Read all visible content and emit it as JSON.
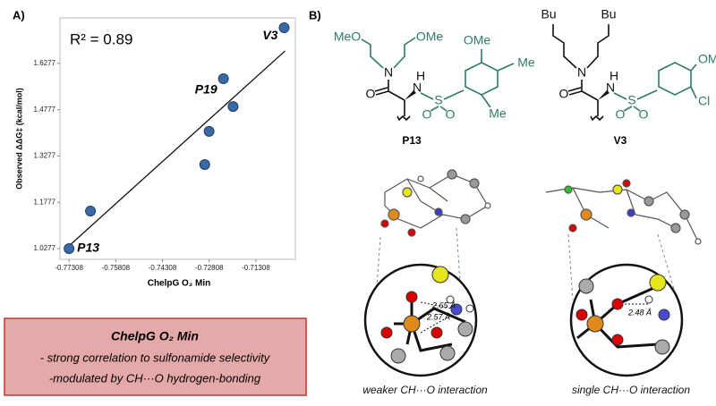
{
  "chart_data": {
    "type": "scatter",
    "panel_label": "A)",
    "annotation": "R² = 0.89",
    "x_label": "ChelpG O₂ Min",
    "y_label": "Observed ΔΔG‡ (kcal/mol)",
    "x": [
      -0.77308,
      -0.7662,
      -0.7295,
      -0.7281,
      -0.7235,
      -0.7204,
      -0.704
    ],
    "y": [
      1.0277,
      1.1495,
      1.3,
      1.4075,
      1.578,
      1.488,
      1.743
    ],
    "point_labels": [
      "P13",
      null,
      null,
      null,
      "P19",
      null,
      "V3"
    ],
    "color": "#3a6aa5",
    "trendline": {
      "x": [
        -0.7731,
        -0.7037
      ],
      "y": [
        1.0364,
        1.668
      ]
    },
    "xlim": [
      -0.776,
      -0.7004
    ],
    "ylim": [
      0.993,
      1.775
    ],
    "xticks": [
      -0.77308,
      -0.75808,
      -0.74308,
      -0.72808,
      -0.71308
    ],
    "yticks": [
      1.0277,
      1.1777,
      1.3277,
      1.4777,
      1.6277
    ]
  },
  "summary_box": {
    "title": "ChelpG O₂ Min",
    "lines": [
      "- strong correlation to sulfonamide selectivity",
      "-modulated by CH···O hydrogen-bonding"
    ]
  },
  "panel_b": {
    "label": "B)",
    "molecules": [
      {
        "name": "P13",
        "atoms": [
          "MeO",
          "OMe",
          "N",
          "O",
          "H",
          "N",
          "S",
          "O",
          "O",
          "OMe",
          "Me",
          "Me"
        ]
      },
      {
        "name": "V3",
        "atoms": [
          "Bu",
          "Bu",
          "N",
          "O",
          "H",
          "N",
          "S",
          "O",
          "O",
          "OMe",
          "Cl"
        ]
      }
    ],
    "distances": [
      "2.65 Å",
      "2.57 Å",
      "2.48 Å"
    ],
    "captions": [
      "weaker CH···O interaction",
      "single CH···O interaction"
    ]
  }
}
